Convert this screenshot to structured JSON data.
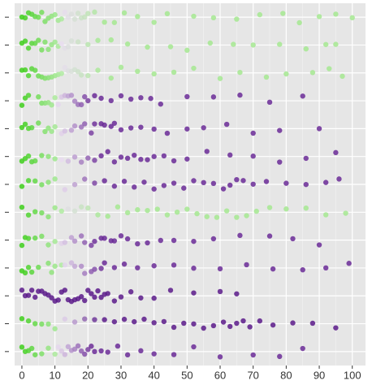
{
  "chart_data": {
    "type": "strip",
    "categories": [
      null,
      null,
      null,
      null,
      null,
      null,
      null,
      null,
      null,
      null,
      null,
      null,
      null
    ],
    "xlim": [
      -2.2,
      104
    ],
    "xticks": [
      0,
      10,
      20,
      30,
      40,
      50,
      60,
      70,
      80,
      90,
      100
    ],
    "grid": true,
    "series": [
      {
        "colors": [
          "#3dce1a",
          "#a4e890"
        ],
        "values": [
          0,
          1,
          2,
          3,
          4,
          5,
          6,
          7,
          8,
          9,
          10,
          11,
          12,
          13,
          14,
          15,
          16,
          17,
          18,
          19,
          20,
          22,
          25,
          28,
          31,
          35,
          40,
          44,
          52,
          58,
          65,
          72,
          79,
          84,
          90,
          95,
          100
        ]
      },
      {
        "colors": [
          "#3dce1a",
          "#a4e890"
        ],
        "values": [
          0,
          1,
          2,
          3,
          4,
          5,
          6,
          7,
          8,
          9,
          10,
          11,
          12,
          13,
          14,
          15,
          17,
          20,
          23,
          27,
          32,
          38,
          45,
          50,
          57,
          64,
          70,
          78,
          86,
          92,
          95
        ]
      },
      {
        "colors": [
          "#3dce1a",
          "#a4e890"
        ],
        "values": [
          0,
          1,
          2,
          3,
          4,
          5,
          6,
          7,
          8,
          9,
          10,
          11,
          12,
          13,
          14,
          15,
          16,
          17,
          18,
          20,
          23,
          27,
          30,
          35,
          40,
          46,
          52,
          60,
          66,
          74,
          80,
          88,
          93,
          97
        ]
      },
      {
        "colors": [
          "#3dce1a",
          "#6a2a96"
        ],
        "values": [
          0,
          1,
          2,
          5,
          6,
          7,
          8,
          9,
          10,
          11,
          12,
          13,
          14,
          15,
          16,
          17,
          18,
          19,
          20,
          22,
          24,
          27,
          30,
          33,
          36,
          39,
          42,
          50,
          58,
          66,
          75,
          85
        ]
      },
      {
        "colors": [
          "#3dce1a",
          "#6a2a96"
        ],
        "values": [
          0,
          1,
          2,
          3,
          5,
          7,
          8,
          9,
          10,
          12,
          13,
          15,
          16,
          18,
          19,
          21,
          22,
          24,
          25,
          27,
          28,
          30,
          33,
          36,
          40,
          44,
          50,
          55,
          62,
          70,
          78,
          90
        ]
      },
      {
        "colors": [
          "#3dce1a",
          "#6a2a96"
        ],
        "values": [
          0,
          1,
          2,
          3,
          4,
          6,
          8,
          10,
          12,
          14,
          16,
          18,
          20,
          22,
          24,
          26,
          28,
          30,
          32,
          34,
          36,
          38,
          40,
          43,
          46,
          50,
          56,
          63,
          70,
          78,
          86,
          95
        ]
      },
      {
        "colors": [
          "#3dce1a",
          "#6a2a96"
        ],
        "values": [
          0,
          2,
          4,
          6,
          8,
          10,
          13,
          16,
          19,
          22,
          25,
          28,
          31,
          34,
          37,
          40,
          43,
          46,
          49,
          52,
          55,
          58,
          61,
          63,
          65,
          67,
          70,
          74,
          80,
          86,
          92,
          96
        ]
      },
      {
        "colors": [
          "#3dce1a",
          "#a4e890"
        ],
        "values": [
          0,
          2,
          4,
          6,
          8,
          10,
          12,
          14,
          16,
          18,
          20,
          23,
          26,
          29,
          32,
          35,
          38,
          41,
          44,
          47,
          50,
          53,
          56,
          59,
          62,
          65,
          68,
          71,
          75,
          80,
          86,
          92,
          98
        ]
      },
      {
        "colors": [
          "#3dce1a",
          "#6a2a96"
        ],
        "values": [
          0,
          1,
          2,
          4,
          6,
          8,
          10,
          12,
          13,
          15,
          16,
          18,
          19,
          21,
          22,
          24,
          25,
          27,
          28,
          30,
          32,
          35,
          38,
          42,
          46,
          52,
          58,
          66,
          75,
          82,
          90
        ]
      },
      {
        "colors": [
          "#3dce1a",
          "#6a2a96"
        ],
        "values": [
          0,
          1,
          2,
          3,
          5,
          8,
          9,
          10,
          12,
          13,
          15,
          16,
          18,
          19,
          21,
          22,
          24,
          25,
          28,
          31,
          35,
          40,
          46,
          52,
          60,
          68,
          76,
          85,
          92,
          99
        ]
      },
      {
        "colors": [
          "#5a1a8a",
          "#5a1a8a"
        ],
        "values": [
          0,
          1,
          2,
          3,
          4,
          5,
          6,
          7,
          8,
          9,
          10,
          11,
          12,
          13,
          14,
          15,
          16,
          17,
          18,
          19,
          20,
          21,
          22,
          23,
          24,
          25,
          26,
          28,
          30,
          33,
          36,
          40,
          45,
          52,
          60,
          65
        ]
      },
      {
        "colors": [
          "#3dce1a",
          "#5a1a8a"
        ],
        "values": [
          0,
          2,
          4,
          6,
          8,
          10,
          13,
          16,
          19,
          22,
          25,
          28,
          31,
          34,
          37,
          40,
          43,
          46,
          49,
          52,
          55,
          58,
          61,
          63,
          65,
          67,
          69,
          72,
          76,
          82,
          88,
          95
        ]
      },
      {
        "colors": [
          "#3dce1a",
          "#6a2a96"
        ],
        "values": [
          0,
          1,
          2,
          3,
          4,
          6,
          8,
          10,
          11,
          12,
          13,
          14,
          15,
          16,
          17,
          18,
          19,
          20,
          21,
          22,
          24,
          26,
          29,
          32,
          36,
          40,
          46,
          52,
          60,
          70,
          78,
          85
        ]
      }
    ]
  }
}
